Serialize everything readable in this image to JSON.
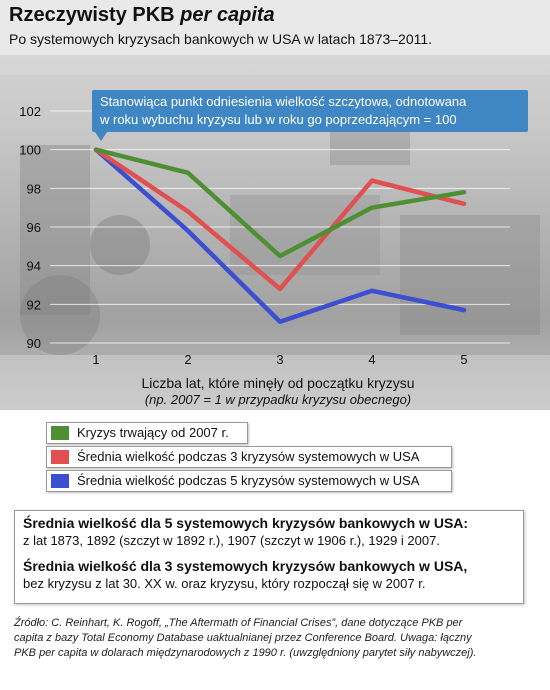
{
  "header": {
    "title_main": "Rzeczywisty PKB ",
    "title_italic": "per capita",
    "subtitle": "Po systemowych kryzysach bankowych w USA w latach 1873–2011."
  },
  "callout": {
    "line1": "Stanowiąca punkt odniesienia wielkość szczytowa, odnotowana",
    "line2": "w roku wybuchu kryzysu lub w roku go poprzedzającym = 100"
  },
  "axes": {
    "xlabel": "Liczba lat, które minęły od początku kryzysu",
    "xlabel_note": "(np. 2007 = 1 w przypadku kryzysu obecnego)"
  },
  "legend": [
    {
      "label": "Kryzys trwający od 2007 r.",
      "color": "#4e8f33"
    },
    {
      "label": "Średnia wielkość podczas 3 kryzysów systemowych w USA",
      "color": "#e05050"
    },
    {
      "label": "Średnia wielkość podczas 5 kryzysów systemowych w USA",
      "color": "#3c4fd0"
    }
  ],
  "infobox": {
    "h1": "Średnia wielkość dla 5 systemowych kryzysów bankowych w USA:",
    "t1": "z lat 1873, 1892 (szczyt w 1892 r.), 1907 (szczyt w 1906 r.), 1929 i 2007.",
    "h2": "Średnia wielkość dla 3 systemowych kryzysów bankowych w USA,",
    "t2": "bez kryzysu z lat 30. XX w. oraz kryzysu, który rozpoczął się w 2007 r."
  },
  "source": {
    "line1": "Źródło: C. Reinhart, K. Rogoff, „The Aftermath of Financial Crises”, dane dotyczące PKB per",
    "line2": "capita z bazy Total Economy Database uaktualnianej przez Conference Board. Uwaga: łączny",
    "line3": "PKB per capita w dolarach międzynarodowych z 1990 r. (uwzględniony parytet siły nabywczej)."
  },
  "chart_data": {
    "type": "line",
    "x": [
      1,
      2,
      3,
      4,
      5
    ],
    "ylim": [
      90,
      102
    ],
    "yticks": [
      90,
      92,
      94,
      96,
      98,
      100,
      102
    ],
    "xticks": [
      1,
      2,
      3,
      4,
      5
    ],
    "grid": true,
    "legend_position": "bottom",
    "series": [
      {
        "name": "Kryzys trwający od 2007 r.",
        "color": "#4e8f33",
        "values": [
          100,
          98.8,
          94.5,
          97.0,
          97.8
        ]
      },
      {
        "name": "Średnia wielkość podczas 3 kryzysów systemowych w USA",
        "color": "#e05050",
        "values": [
          100,
          96.8,
          92.8,
          98.4,
          97.2
        ]
      },
      {
        "name": "Średnia wielkość podczas 5 kryzysów systemowych w USA",
        "color": "#3c4fd0",
        "values": [
          100,
          95.8,
          91.1,
          92.7,
          91.7
        ]
      }
    ]
  }
}
